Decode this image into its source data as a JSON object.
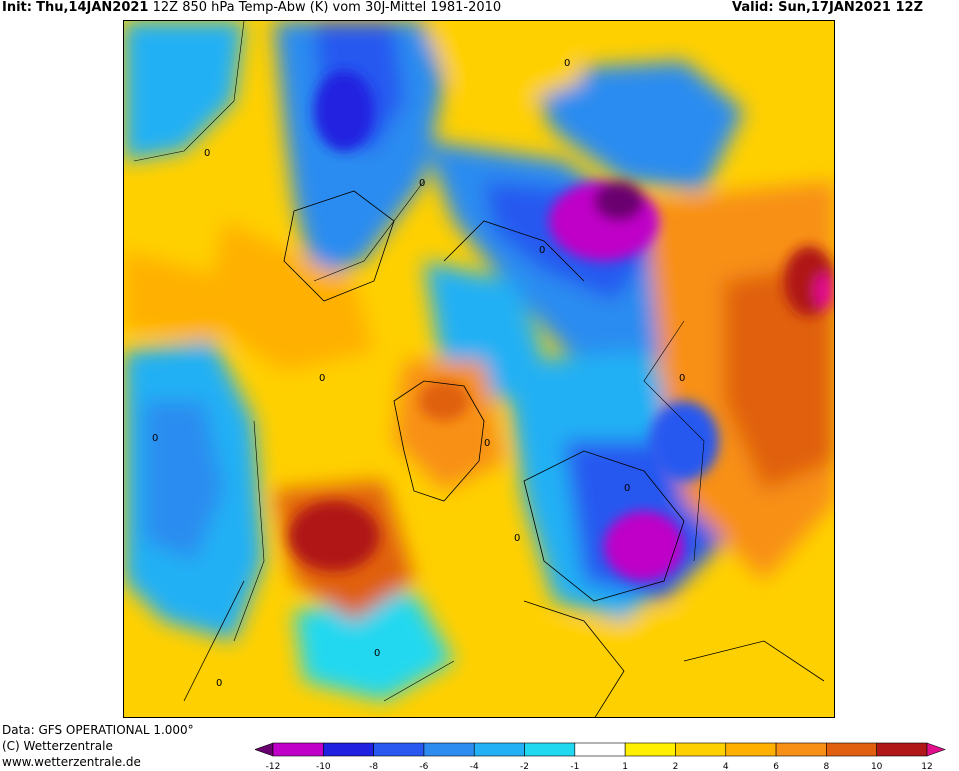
{
  "header": {
    "init_label": "Init:",
    "init_date": "Thu,14JAN2021",
    "run_time": "12Z",
    "title": "850 hPa Temp-Abw (K) vom 30J-Mittel 1981-2010",
    "valid_label": "Valid:",
    "valid_date": "Sun,17JAN2021",
    "valid_time": "12Z"
  },
  "footer": {
    "data_line": "Data: GFS OPERATIONAL 1.000°",
    "copyright_line": "(C) Wetterzentrale",
    "website_line": "www.wetterzentrale.de"
  },
  "colorbar": {
    "ticks": [
      "-12",
      "-10",
      "-8",
      "-6",
      "-4",
      "-2",
      "-1",
      "1",
      "2",
      "4",
      "6",
      "8",
      "10",
      "12"
    ],
    "colors": [
      "#6a0070",
      "#c000c8",
      "#2020e0",
      "#2858f0",
      "#2c8cf0",
      "#24b0f4",
      "#20d8f0",
      "#ffffff",
      "#fff000",
      "#ffd000",
      "#ffb000",
      "#f89018",
      "#e06010",
      "#b01818",
      "#e0108c"
    ]
  },
  "contour_labels": [
    "0",
    "0",
    "0",
    "0",
    "0",
    "0",
    "0",
    "0",
    "0",
    "0",
    "0",
    "0"
  ]
}
